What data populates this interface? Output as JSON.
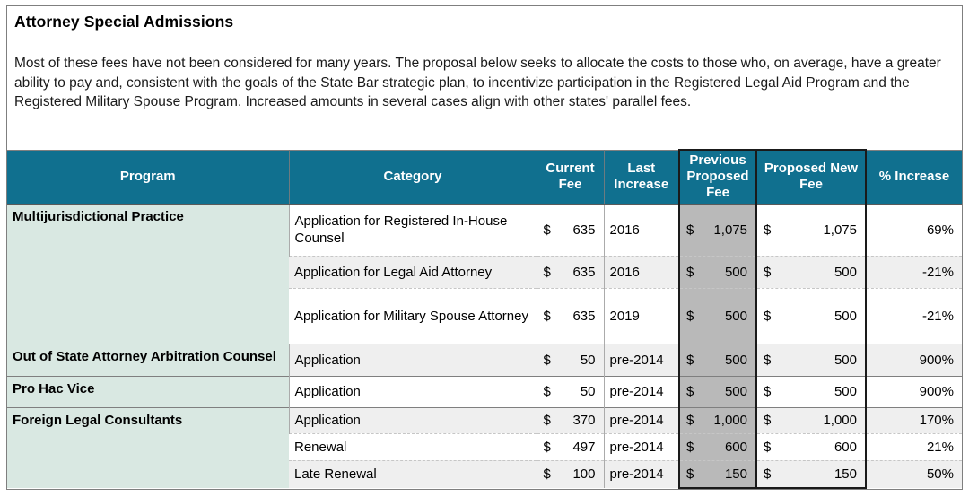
{
  "page": {
    "title": "Attorney Special Admissions",
    "intro": "Most of these fees have not been considered for many years. The proposal below seeks to allocate the costs to those who, on average, have a greater ability to pay and, consistent with the goals of the State Bar strategic plan, to incentivize participation in the Registered Legal Aid Program and the Registered Military Spouse Program. Increased amounts in several cases align with other states' parallel fees."
  },
  "table": {
    "headers": [
      "Program",
      "Category",
      "Current Fee",
      "Last Increase",
      "Previous Proposed Fee",
      "Proposed New Fee",
      "% Increase"
    ],
    "currency_symbol": "$",
    "groups": [
      {
        "program": "Multijurisdictional Practice",
        "rows": [
          {
            "category": "Application for Registered In-House Counsel",
            "current_fee": "635",
            "last_increase": "2016",
            "previous_proposed_fee": "1,075",
            "proposed_new_fee": "1,075",
            "percent_increase": "69%"
          },
          {
            "category": "Application for Legal Aid Attorney",
            "current_fee": "635",
            "last_increase": "2016",
            "previous_proposed_fee": "500",
            "proposed_new_fee": "500",
            "percent_increase": "-21%"
          },
          {
            "category": "Application  for Military Spouse Attorney",
            "current_fee": "635",
            "last_increase": "2019",
            "previous_proposed_fee": "500",
            "proposed_new_fee": "500",
            "percent_increase": "-21%"
          }
        ]
      },
      {
        "program": "Out of State Attorney Arbitration Counsel",
        "rows": [
          {
            "category": "Application",
            "current_fee": "50",
            "last_increase": "pre-2014",
            "previous_proposed_fee": "500",
            "proposed_new_fee": "500",
            "percent_increase": "900%"
          }
        ]
      },
      {
        "program": "Pro Hac Vice",
        "rows": [
          {
            "category": "Application",
            "current_fee": "50",
            "last_increase": "pre-2014",
            "previous_proposed_fee": "500",
            "proposed_new_fee": "500",
            "percent_increase": "900%"
          }
        ]
      },
      {
        "program": "Foreign Legal Consultants",
        "rows": [
          {
            "category": "Application",
            "current_fee": "370",
            "last_increase": "pre-2014",
            "previous_proposed_fee": "1,000",
            "proposed_new_fee": "1,000",
            "percent_increase": "170%"
          },
          {
            "category": "Renewal",
            "current_fee": "497",
            "last_increase": "pre-2014",
            "previous_proposed_fee": "600",
            "proposed_new_fee": "600",
            "percent_increase": "21%"
          },
          {
            "category": "Late Renewal",
            "current_fee": "100",
            "last_increase": "pre-2014",
            "previous_proposed_fee": "150",
            "proposed_new_fee": "150",
            "percent_increase": "50%"
          }
        ]
      }
    ],
    "colors": {
      "header_background": "#10708f",
      "header_text": "#ffffff",
      "program_column_background": "#d9e8e2",
      "previous_proposed_column_background": "#b9b9b9",
      "alternate_row_background": "#efefef",
      "group_border": "#7f7f7f",
      "highlight_outline": "#1a1a1a"
    }
  }
}
